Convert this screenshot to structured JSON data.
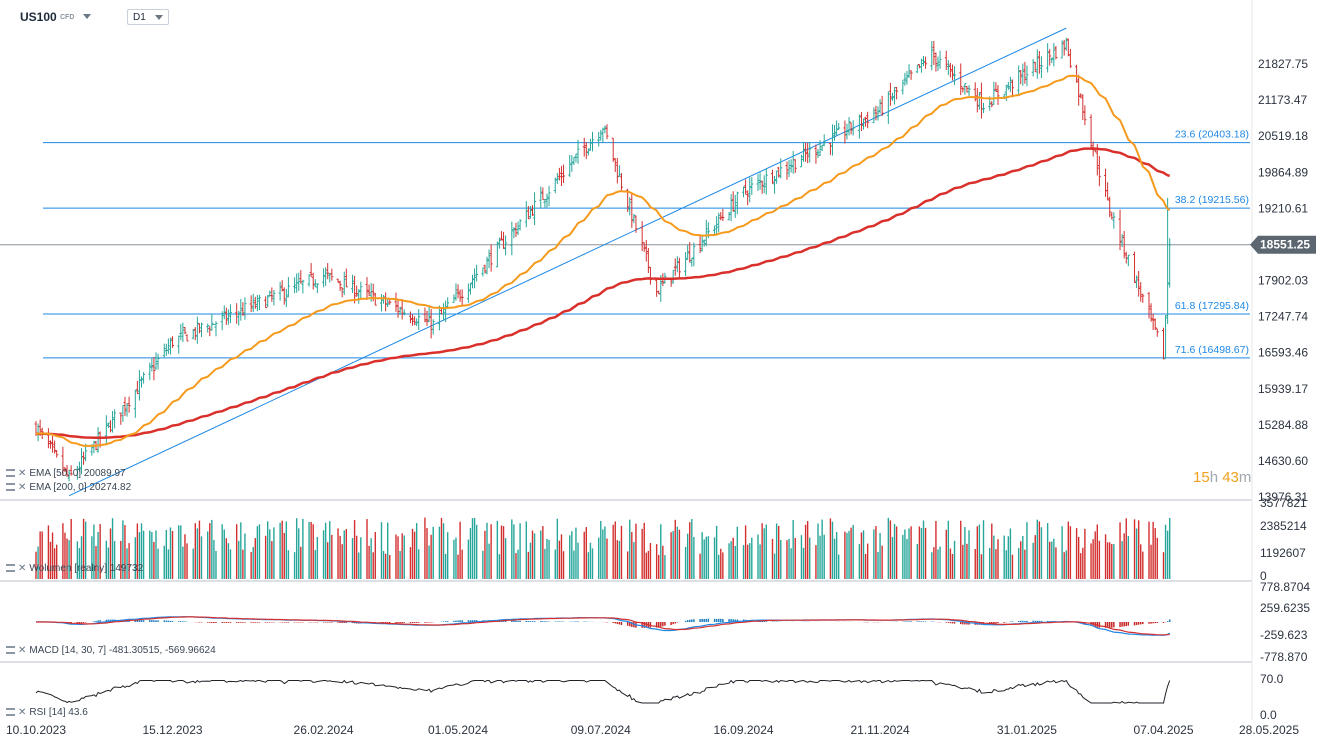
{
  "header": {
    "symbol": "US100",
    "type": "CFD",
    "timeframe": "D1"
  },
  "price_axis_labels": [
    "21827.75",
    "21173.47",
    "20519.18",
    "19864.89",
    "19210.61",
    "17902.03",
    "17247.74",
    "16593.46",
    "15939.17",
    "15284.88",
    "14630.60",
    "13976.31"
  ],
  "current_price": "18551.25",
  "fib_levels": [
    {
      "label": "23.6 (20403.18)",
      "value": 20403.18
    },
    {
      "label": "38.2 (19215.56)",
      "value": 19215.56
    },
    {
      "label": "61.8 (17295.84)",
      "value": 17295.84
    },
    {
      "label": "71.6 (16498.67)",
      "value": 16498.67
    }
  ],
  "date_labels": [
    "10.10.2023",
    "15.12.2023",
    "26.02.2024",
    "01.05.2024",
    "09.07.2024",
    "16.09.2024",
    "21.11.2024",
    "31.01.2025",
    "07.04.2025",
    "28.05.2025"
  ],
  "legends": {
    "ema50": "EMA [50, 0] 20089.97",
    "ema200": "EMA [200, 0] 20274.82",
    "volume": "Wolumen [realny] 149732",
    "macd": "MACD [14, 30, 7] -481.30515, -569.96624",
    "rsi": "RSI [14] 43.6"
  },
  "volume_axis": [
    "3577821",
    "2385214",
    "1192607",
    "0"
  ],
  "macd_axis": [
    "778.8704",
    "259.6235",
    "-259.623",
    "-778.870"
  ],
  "rsi_axis": [
    "70.0",
    "0.0"
  ],
  "countdown": {
    "h": "15",
    "hu": "h",
    "m": "43",
    "mu": "m"
  },
  "colors": {
    "up": "#26a69a",
    "down": "#d32f2f",
    "ema50": "#f59a1c",
    "ema200": "#d9302c",
    "fib": "#1e88e5",
    "trend": "#1e88e5"
  },
  "chart_data": {
    "type": "candlestick",
    "y_range": [
      13976.31,
      22482.04
    ],
    "x_range": [
      "2023-10-10",
      "2025-05-28"
    ],
    "key_points": [
      {
        "date": "2023-10-10",
        "close": 15250
      },
      {
        "date": "2023-10-26",
        "close": 14300
      },
      {
        "date": "2023-12-15",
        "close": 16800
      },
      {
        "date": "2024-02-26",
        "close": 18000
      },
      {
        "date": "2024-04-19",
        "close": 17100
      },
      {
        "date": "2024-07-10",
        "close": 20700
      },
      {
        "date": "2024-08-05",
        "close": 17700
      },
      {
        "date": "2024-09-16",
        "close": 19500
      },
      {
        "date": "2024-11-21",
        "close": 21000
      },
      {
        "date": "2024-12-16",
        "close": 22000
      },
      {
        "date": "2025-01-10",
        "close": 21100
      },
      {
        "date": "2025-02-19",
        "close": 22200
      },
      {
        "date": "2025-03-11",
        "close": 19300
      },
      {
        "date": "2025-04-07",
        "close": 16550
      },
      {
        "date": "2025-04-10",
        "close": 18551.25
      }
    ],
    "ema50_last": 20089.97,
    "ema200_last": 20274.82,
    "macd_last": [
      -481.30515,
      -569.96624
    ],
    "rsi_last": 43.6
  }
}
